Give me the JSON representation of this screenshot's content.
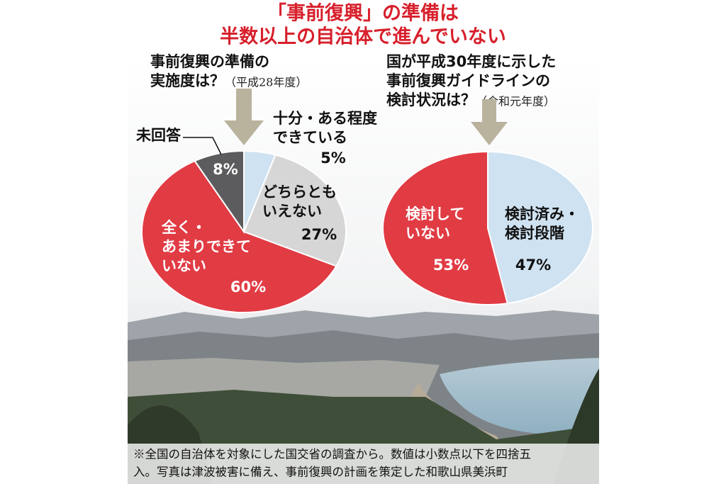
{
  "title": [
    "「事前復興」の準備は",
    "半数以上の自治体で進んでいない"
  ],
  "chart_data": [
    {
      "type": "pie",
      "heading": [
        "事前復興の準備の",
        "実施度は？"
      ],
      "period": "（平成28年度）",
      "categories": [
        "十分・ある程度\nできている",
        "どちらとも\nいえない",
        "全く・\nあまりできて\nいない",
        "未回答"
      ],
      "values": [
        5,
        27,
        60,
        8
      ],
      "value_labels": [
        "5%",
        "27%",
        "60%",
        "8%"
      ],
      "colors": [
        "#cfe2f1",
        "#d6d6d6",
        "#e13b44",
        "#5c5c5e"
      ]
    },
    {
      "type": "pie",
      "heading": [
        "国が平成30年度に示した",
        "事前復興ガイドラインの",
        "検討状況は？"
      ],
      "period": "（令和元年度）",
      "categories": [
        "検討済み・\n検討段階",
        "検討して\nいない"
      ],
      "values": [
        47,
        53
      ],
      "value_labels": [
        "47%",
        "53%"
      ],
      "colors": [
        "#cfe2f1",
        "#e13b44"
      ]
    }
  ],
  "note": [
    "※全国の自治体を対象にした国交省の調査から。数値は小数点以下を四捨五",
    "入。写真は津波被害に備え、事前復興の計画を策定した和歌山県美浜町"
  ]
}
